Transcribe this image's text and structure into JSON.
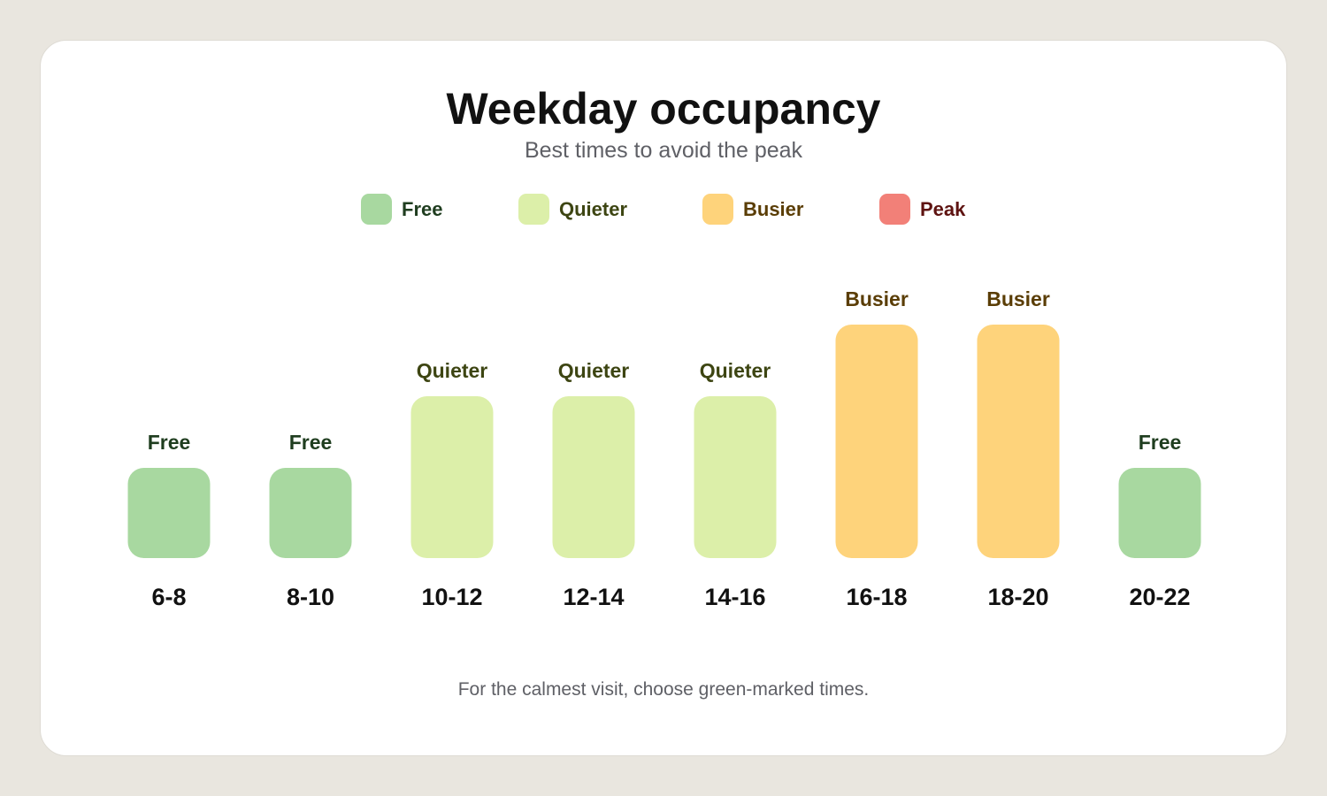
{
  "chart_data": {
    "type": "bar",
    "title": "Weekday occupancy",
    "subtitle": "Best times to avoid the peak",
    "footnote": "For the calmest visit, choose green-marked times.",
    "legend": [
      {
        "label": "Free",
        "color": "#a8d8a0",
        "text_color": "#1f3d1f"
      },
      {
        "label": "Quieter",
        "color": "#dcefa9",
        "text_color": "#3d4512"
      },
      {
        "label": "Busier",
        "color": "#fed37b",
        "text_color": "#5a3d05"
      },
      {
        "label": "Peak",
        "color": "#f28078",
        "text_color": "#5e1311"
      }
    ],
    "categories": [
      "6-8",
      "8-10",
      "10-12",
      "12-14",
      "14-16",
      "16-18",
      "18-20",
      "20-22"
    ],
    "values": [
      "Free",
      "Free",
      "Quieter",
      "Quieter",
      "Quieter",
      "Busier",
      "Busier",
      "Free"
    ],
    "levels": [
      "Free",
      "Quieter",
      "Busier",
      "Peak"
    ],
    "legend_position": "top-center",
    "grid": false
  }
}
